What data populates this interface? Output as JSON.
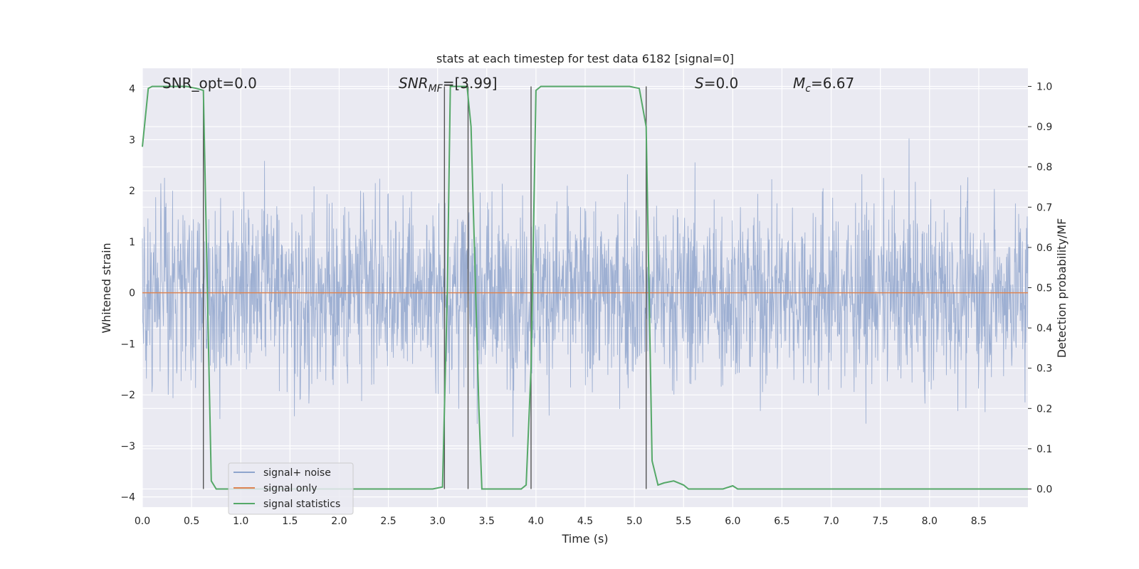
{
  "chart_data": {
    "type": "line",
    "title": "stats at each timestep for test data 6182 [signal=0]",
    "xlabel": "Time (s)",
    "ylabel": "Whitened strain",
    "y2label": "Detection probability/MF",
    "xlim": [
      0,
      9.0
    ],
    "ylim": [
      -4.2,
      4.4
    ],
    "y2lim": [
      -0.045,
      1.045
    ],
    "xticks": [
      0.0,
      0.5,
      1.0,
      1.5,
      2.0,
      2.5,
      3.0,
      3.5,
      4.0,
      4.5,
      5.0,
      5.5,
      6.0,
      6.5,
      7.0,
      7.5,
      8.0,
      8.5
    ],
    "yticks": [
      4,
      3,
      2,
      1,
      0,
      -1,
      -2,
      -3,
      -4
    ],
    "y2ticks": [
      1.0,
      0.9,
      0.8,
      0.7,
      0.6,
      0.5,
      0.4,
      0.3,
      0.2,
      0.1,
      0.0
    ],
    "grid": true,
    "legend_position": "lower-left",
    "annotations": {
      "snr_opt": "SNR_opt=0.0",
      "snr_mf_main": "SNR",
      "snr_mf_sub": "MF",
      "snr_mf_value": "=[3.99]",
      "s_main": "S",
      "s_value": "=0.0",
      "mc_main": "M",
      "mc_sub": "c",
      "mc_value": "=6.67"
    },
    "series": [
      {
        "name": "signal+ noise",
        "color": "#8fa5cd",
        "axis": "left",
        "description_stat": "whitened noise, amplitude roughly within [-3.8, 4.0]"
      },
      {
        "name": "signal only",
        "color": "#dd8452",
        "axis": "left",
        "x": [
          0.0,
          9.0
        ],
        "y": [
          0.0,
          0.0
        ]
      },
      {
        "name": "signal statistics",
        "color": "#55a868",
        "axis": "right",
        "x": [
          0.0,
          0.06,
          0.1,
          0.45,
          0.55,
          0.62,
          0.66,
          0.7,
          0.75,
          2.95,
          3.05,
          3.1,
          3.13,
          3.3,
          3.34,
          3.42,
          3.45,
          3.85,
          3.9,
          3.95,
          4.0,
          4.05,
          4.7,
          4.95,
          5.05,
          5.12,
          5.18,
          5.24,
          5.3,
          5.4,
          5.5,
          5.55,
          5.9,
          6.0,
          6.05,
          9.0
        ],
        "y": [
          0.85,
          0.995,
          1.0,
          1.0,
          0.995,
          0.99,
          0.5,
          0.02,
          0.0,
          0.0,
          0.005,
          0.5,
          1.0,
          1.0,
          0.9,
          0.2,
          0.0,
          0.0,
          0.01,
          0.3,
          0.99,
          1.0,
          1.0,
          1.0,
          0.995,
          0.9,
          0.07,
          0.01,
          0.015,
          0.02,
          0.01,
          0.0,
          0.0,
          0.008,
          0.0,
          0.0
        ]
      }
    ],
    "vertical_markers": [
      {
        "x": 0.62,
        "y2_top": 0.99,
        "y2_bottom": 0.0
      },
      {
        "x": 3.07,
        "y2_top": 1.0,
        "y2_bottom": 0.0
      },
      {
        "x": 3.31,
        "y2_top": 1.0,
        "y2_bottom": 0.0
      },
      {
        "x": 3.95,
        "y2_top": 1.0,
        "y2_bottom": 0.0
      },
      {
        "x": 5.12,
        "y2_top": 1.0,
        "y2_bottom": 0.0
      }
    ],
    "colors": {
      "plot_background": "#eaeaf2",
      "grid": "#ffffff",
      "marker_line": "#555555"
    }
  }
}
